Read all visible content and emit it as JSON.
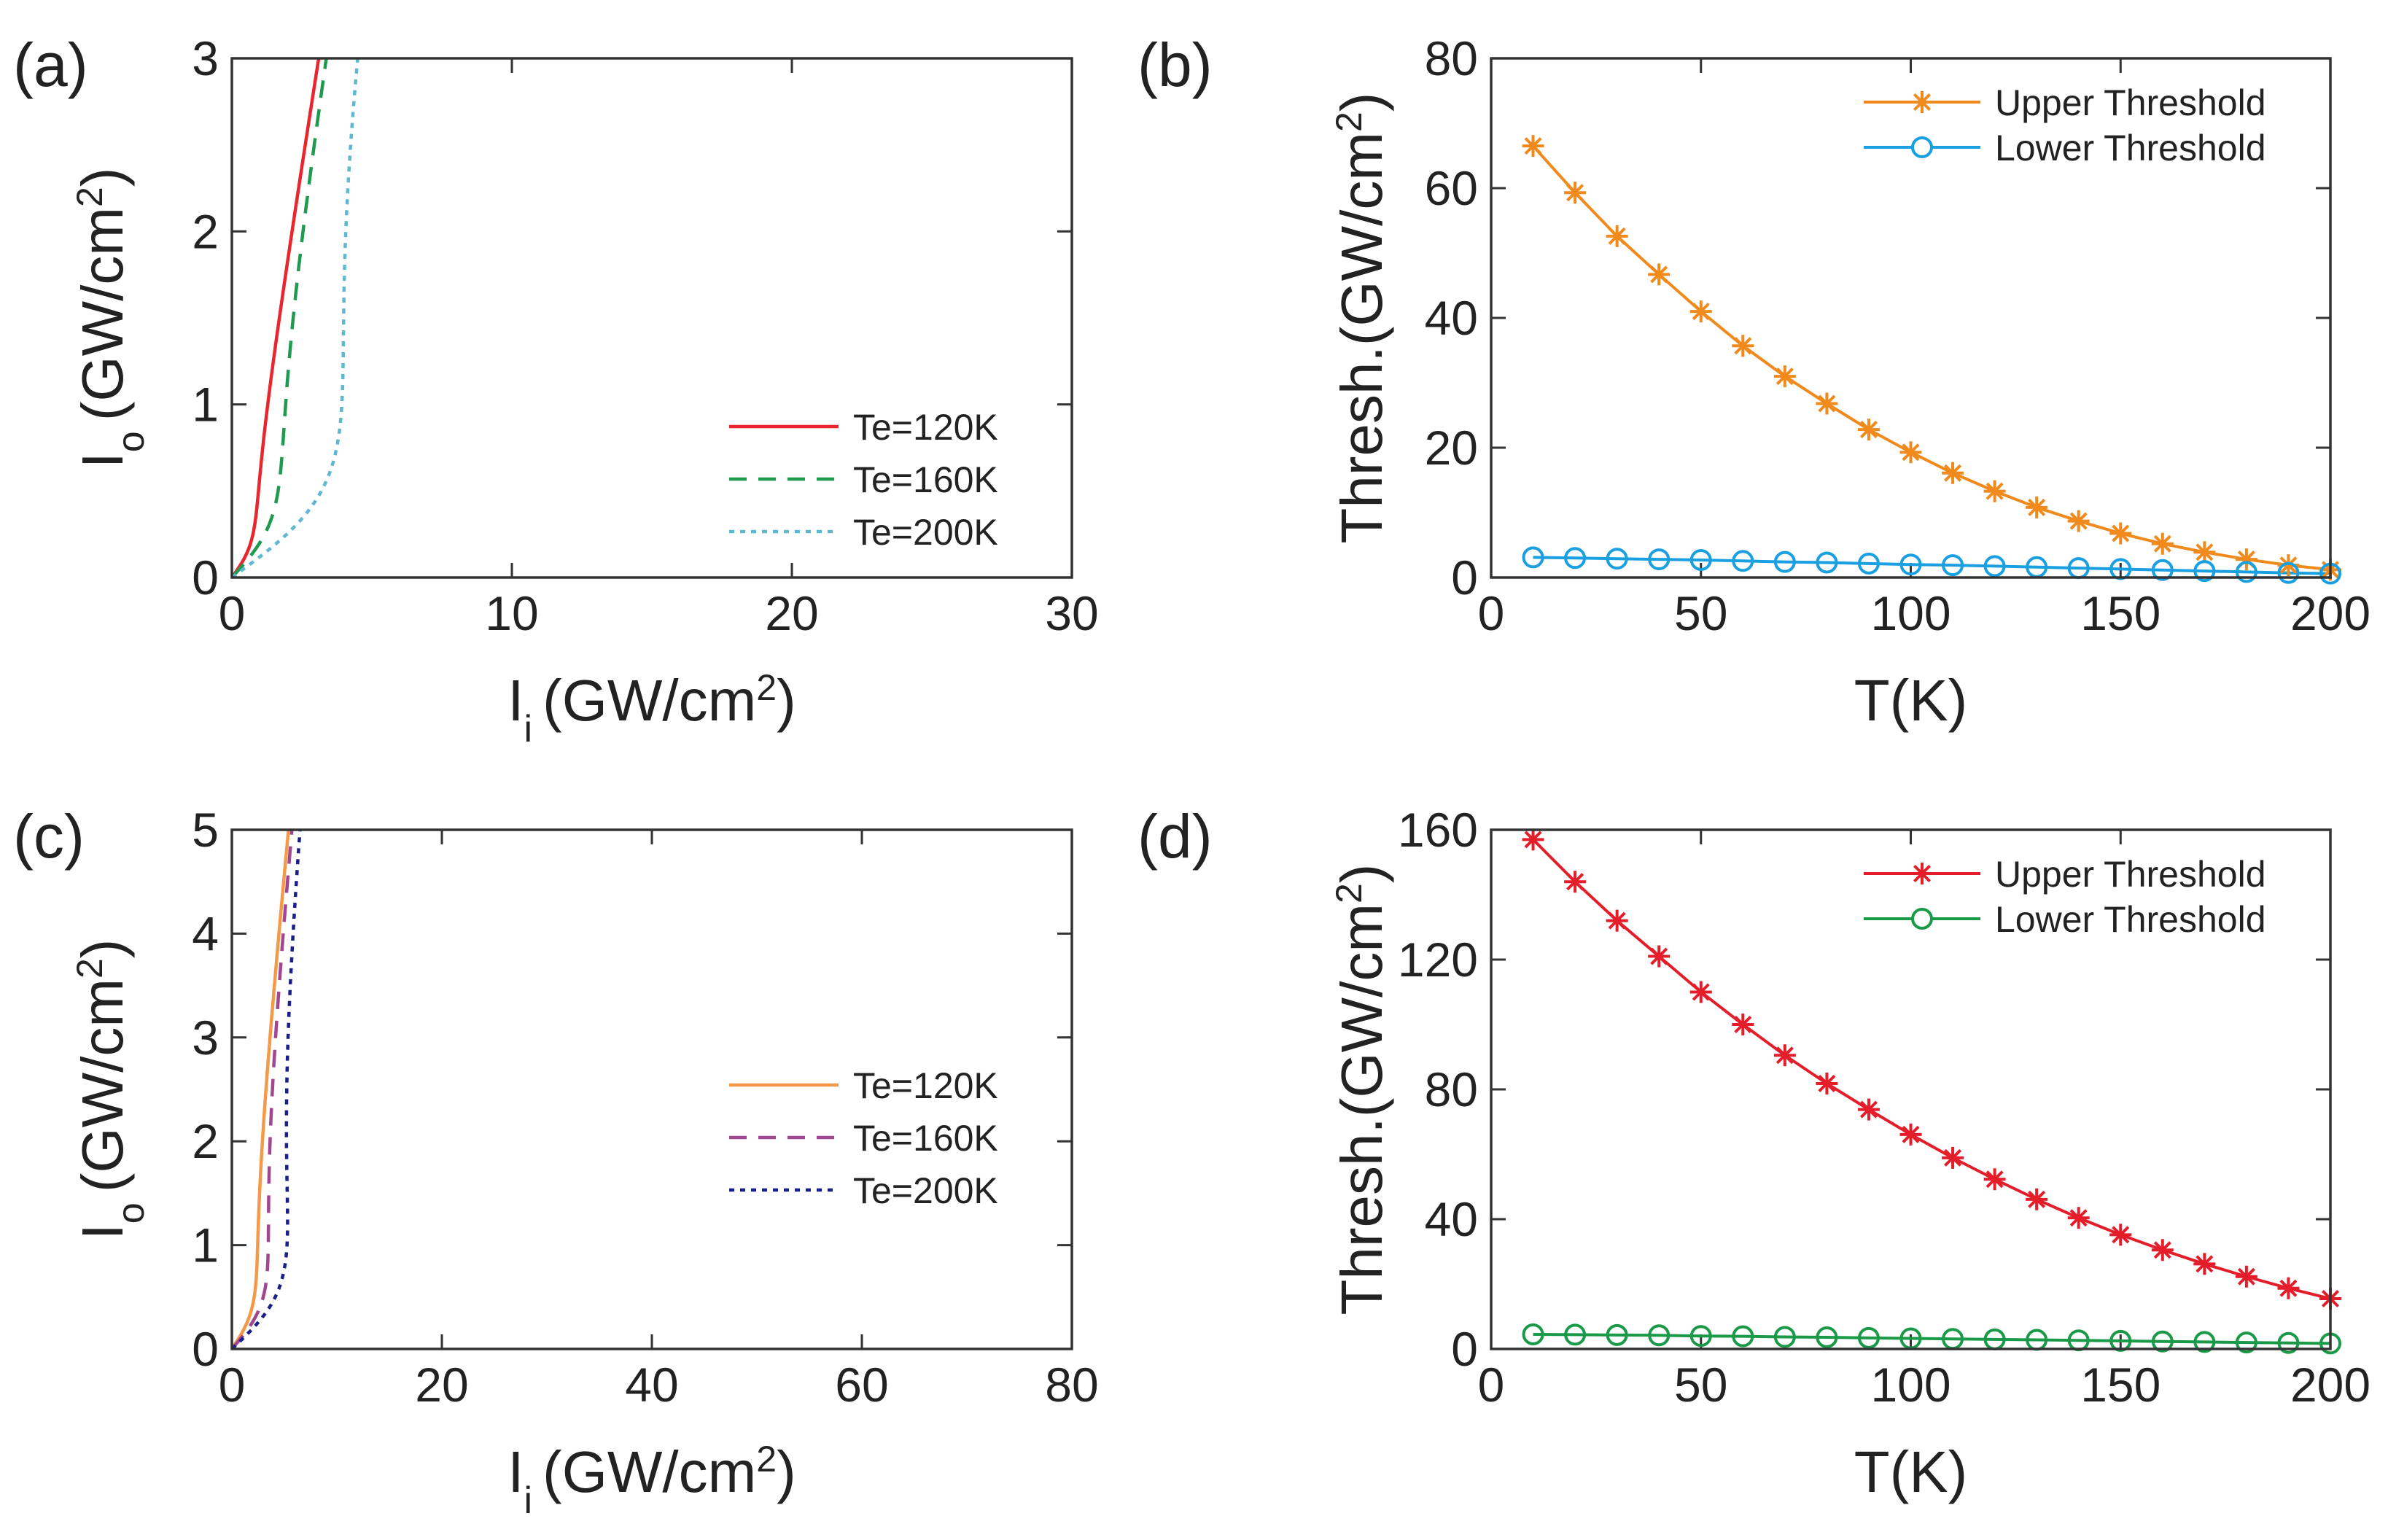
{
  "panels": [
    {
      "id": "a",
      "label": "(a)",
      "type": "line",
      "xlabel": {
        "main": "I",
        "sub": "i",
        "rest": "(GW/cm",
        "sup": "2",
        "end": ")"
      },
      "ylabel": {
        "main": "I",
        "sub": "o",
        "rest": "(GW/cm",
        "sup": "2",
        "end": ")"
      },
      "xlim": [
        0,
        30
      ],
      "ylim": [
        0,
        3
      ],
      "xticks": [
        "0",
        "10",
        "20",
        "30"
      ],
      "yticks": [
        "0",
        "1",
        "2",
        "3"
      ],
      "xtick_values": [
        0,
        10,
        20,
        30
      ],
      "ytick_values": [
        0,
        1,
        2,
        3
      ],
      "legend_position": "lower-right",
      "series": [
        {
          "name": "Te=120K",
          "color": "#e8262e",
          "style": "solid",
          "model": {
            "k": 0.3,
            "p": 3.4
          }
        },
        {
          "name": "Te=160K",
          "color": "#1f9a4f",
          "style": "dashed",
          "model": {
            "k": 0.5,
            "p": 4.6
          }
        },
        {
          "name": "Te=200K",
          "color": "#5fb8d0",
          "style": "dotted",
          "model": {
            "k": 0.8,
            "p": 7.5
          }
        }
      ]
    },
    {
      "id": "b",
      "label": "(b)",
      "type": "line",
      "xlabel": {
        "main": "T(K)"
      },
      "ylabel": {
        "main": "Thresh.(GW/cm",
        "sup": "2",
        "end": ")"
      },
      "xlim": [
        0,
        200
      ],
      "ylim": [
        0,
        80
      ],
      "xticks": [
        "0",
        "50",
        "100",
        "150",
        "200"
      ],
      "yticks": [
        "0",
        "20",
        "40",
        "60",
        "80"
      ],
      "xtick_values": [
        0,
        50,
        100,
        150,
        200
      ],
      "ytick_values": [
        0,
        20,
        40,
        60,
        80
      ],
      "legend_position": "top-right",
      "x": [
        10,
        20,
        30,
        40,
        50,
        60,
        70,
        80,
        90,
        100,
        110,
        120,
        130,
        140,
        150,
        160,
        170,
        180,
        190,
        200
      ],
      "series": [
        {
          "name": "Upper Threshold",
          "color": "#f08a1c",
          "marker": "star",
          "values": [
            66.5,
            59.3,
            52.6,
            46.7,
            41.0,
            35.7,
            31.0,
            26.8,
            22.8,
            19.3,
            16.1,
            13.3,
            10.8,
            8.7,
            6.8,
            5.2,
            3.9,
            2.8,
            1.9,
            1.2
          ]
        },
        {
          "name": "Lower Threshold",
          "color": "#1aa0e0",
          "marker": "circle",
          "values": [
            3.1,
            3.0,
            2.9,
            2.8,
            2.7,
            2.55,
            2.4,
            2.3,
            2.15,
            2.0,
            1.9,
            1.75,
            1.6,
            1.45,
            1.3,
            1.15,
            1.0,
            0.85,
            0.7,
            0.6
          ]
        }
      ]
    },
    {
      "id": "c",
      "label": "(c)",
      "type": "line",
      "xlabel": {
        "main": "I",
        "sub": "i",
        "rest": "(GW/cm",
        "sup": "2",
        "end": ")"
      },
      "ylabel": {
        "main": "I",
        "sub": "o",
        "rest": "(GW/cm",
        "sup": "2",
        "end": ")"
      },
      "xlim": [
        0,
        80
      ],
      "ylim": [
        0,
        5
      ],
      "xticks": [
        "0",
        "20",
        "40",
        "60",
        "80"
      ],
      "yticks": [
        "0",
        "1",
        "2",
        "3",
        "4",
        "5"
      ],
      "xtick_values": [
        0,
        20,
        40,
        60,
        80
      ],
      "ytick_values": [
        0,
        1,
        2,
        3,
        4,
        5
      ],
      "legend_position": "center-right",
      "series": [
        {
          "name": "Te=120K",
          "color": "#f39a4a",
          "style": "solid",
          "model": {
            "k": 0.6,
            "p": 5.5
          }
        },
        {
          "name": "Te=160K",
          "color": "#a0478f",
          "style": "dashed",
          "model": {
            "k": 0.7,
            "p": 7.5
          }
        },
        {
          "name": "Te=200K",
          "color": "#1c1f8a",
          "style": "dotted",
          "model": {
            "k": 0.9,
            "p": 9.5
          }
        }
      ]
    },
    {
      "id": "d",
      "label": "(d)",
      "type": "line",
      "xlabel": {
        "main": "T(K)"
      },
      "ylabel": {
        "main": "Thresh.(GW/cm",
        "sup": "2",
        "end": ")"
      },
      "xlim": [
        0,
        200
      ],
      "ylim": [
        0,
        160
      ],
      "xticks": [
        "0",
        "50",
        "100",
        "150",
        "200"
      ],
      "yticks": [
        "0",
        "40",
        "80",
        "120",
        "160"
      ],
      "xtick_values": [
        0,
        50,
        100,
        150,
        200
      ],
      "ytick_values": [
        0,
        40,
        80,
        120,
        160
      ],
      "legend_position": "top-right",
      "x": [
        10,
        20,
        30,
        40,
        50,
        60,
        70,
        80,
        90,
        100,
        110,
        120,
        130,
        140,
        150,
        160,
        170,
        180,
        190,
        200
      ],
      "series": [
        {
          "name": "Upper Threshold",
          "color": "#e31e2a",
          "marker": "star",
          "values": [
            157,
            144,
            132,
            121,
            110,
            100,
            90.5,
            81.8,
            73.8,
            66.1,
            58.9,
            52.3,
            46.1,
            40.4,
            35.2,
            30.5,
            26.2,
            22.3,
            18.7,
            15.5
          ]
        },
        {
          "name": "Lower Threshold",
          "color": "#1a9a48",
          "marker": "circle",
          "values": [
            4.5,
            4.4,
            4.3,
            4.2,
            4.0,
            3.9,
            3.7,
            3.6,
            3.4,
            3.25,
            3.1,
            2.95,
            2.8,
            2.65,
            2.5,
            2.3,
            2.15,
            2.0,
            1.85,
            1.7
          ]
        }
      ]
    }
  ]
}
